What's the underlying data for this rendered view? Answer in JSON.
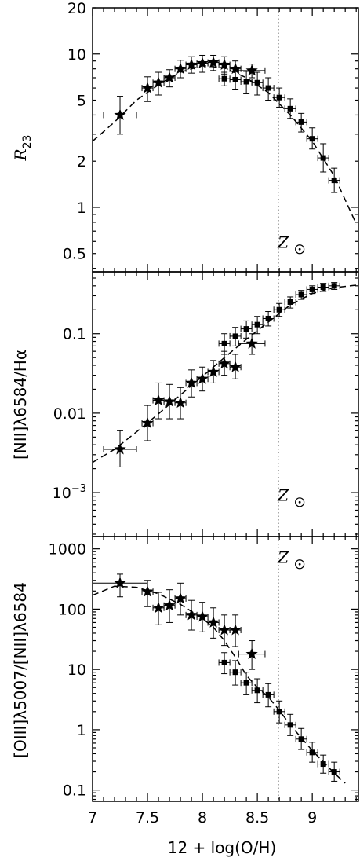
{
  "chart_data": [
    {
      "type": "scatter",
      "ylabel": "R23",
      "ylabel_main": "R",
      "ylabel_sub": "23",
      "yscale": "log",
      "ylim": [
        0.38,
        20
      ],
      "xlim": [
        7.0,
        9.42
      ],
      "yticks": [
        {
          "v": 0.5,
          "label": "0.5"
        },
        {
          "v": 1,
          "label": "1"
        },
        {
          "v": 2,
          "label": "2"
        },
        {
          "v": 5,
          "label": "5"
        },
        {
          "v": 10,
          "label": "10"
        },
        {
          "v": 20,
          "label": "20"
        }
      ],
      "annotation": "Z",
      "annotation_pos": [
        8.8,
        0.6
      ],
      "vline": 8.69,
      "series": [
        {
          "marker": "star",
          "x": [
            7.25,
            7.5,
            7.6,
            7.7,
            7.8,
            7.9,
            8.0,
            8.1,
            8.2,
            8.3,
            8.45
          ],
          "y": [
            4.0,
            6.0,
            6.5,
            7.0,
            8.0,
            8.5,
            8.7,
            8.8,
            8.5,
            8.0,
            7.8
          ],
          "xerr": [
            0.15,
            0.05,
            0.05,
            0.05,
            0.05,
            0.05,
            0.05,
            0.05,
            0.05,
            0.05,
            0.12
          ],
          "ylo": [
            3.0,
            4.9,
            5.4,
            6.1,
            7.0,
            7.5,
            7.6,
            7.8,
            7.4,
            7.0,
            7.0
          ],
          "yhi": [
            5.3,
            7.1,
            7.6,
            7.9,
            9.1,
            9.6,
            9.8,
            9.8,
            9.6,
            9.0,
            8.6
          ]
        },
        {
          "marker": "square",
          "x": [
            8.2,
            8.3,
            8.4,
            8.5,
            8.6,
            8.7,
            8.8,
            8.9,
            9.0,
            9.1,
            9.2
          ],
          "y": [
            6.9,
            6.8,
            6.6,
            6.5,
            6.0,
            5.2,
            4.4,
            3.6,
            2.8,
            2.1,
            1.5
          ],
          "xerr": [
            0.05,
            0.05,
            0.05,
            0.05,
            0.05,
            0.05,
            0.05,
            0.05,
            0.05,
            0.05,
            0.05
          ],
          "ylo": [
            6.2,
            5.9,
            5.5,
            5.4,
            5.0,
            4.5,
            3.8,
            3.1,
            2.4,
            1.7,
            1.25
          ],
          "yhi": [
            7.6,
            7.7,
            7.7,
            7.6,
            7.0,
            6.0,
            5.1,
            4.1,
            3.3,
            2.6,
            1.8
          ]
        }
      ],
      "curve": {
        "x": [
          7.0,
          7.2,
          7.4,
          7.6,
          7.8,
          8.0,
          8.2,
          8.4,
          8.6,
          8.8,
          9.0,
          9.2,
          9.4
        ],
        "y": [
          2.7,
          3.6,
          5.0,
          6.3,
          7.6,
          8.4,
          8.1,
          7.0,
          5.6,
          4.0,
          2.7,
          1.6,
          0.78
        ]
      }
    },
    {
      "type": "scatter",
      "ylabel": "[NII]λ6584/Hα",
      "yscale": "log",
      "ylim": [
        0.00028,
        0.6
      ],
      "xlim": [
        7.0,
        9.42
      ],
      "yticks": [
        {
          "v": 0.001,
          "label": "10",
          "sup": "−3"
        },
        {
          "v": 0.01,
          "label": "0.01"
        },
        {
          "v": 0.1,
          "label": "0.1"
        }
      ],
      "annotation": "Z",
      "annotation_pos": [
        8.8,
        0.00095
      ],
      "vline": 8.69,
      "series": [
        {
          "marker": "star",
          "x": [
            7.25,
            7.5,
            7.6,
            7.7,
            7.8,
            7.9,
            8.0,
            8.1,
            8.2,
            8.3,
            8.45
          ],
          "y": [
            0.0035,
            0.0075,
            0.0145,
            0.014,
            0.0135,
            0.024,
            0.027,
            0.033,
            0.042,
            0.038,
            0.075
          ],
          "xerr": [
            0.15,
            0.05,
            0.05,
            0.05,
            0.05,
            0.05,
            0.05,
            0.05,
            0.05,
            0.05,
            0.12
          ],
          "ylo": [
            0.0021,
            0.0045,
            0.0085,
            0.0085,
            0.0085,
            0.016,
            0.019,
            0.024,
            0.03,
            0.027,
            0.055
          ],
          "yhi": [
            0.006,
            0.0125,
            0.024,
            0.023,
            0.021,
            0.035,
            0.038,
            0.046,
            0.06,
            0.055,
            0.1
          ]
        },
        {
          "marker": "square",
          "x": [
            8.2,
            8.3,
            8.4,
            8.5,
            8.6,
            8.7,
            8.8,
            8.9,
            9.0,
            9.1,
            9.2
          ],
          "y": [
            0.075,
            0.093,
            0.115,
            0.13,
            0.155,
            0.2,
            0.25,
            0.31,
            0.36,
            0.385,
            0.4
          ],
          "xerr": [
            0.05,
            0.05,
            0.05,
            0.05,
            0.05,
            0.05,
            0.05,
            0.05,
            0.05,
            0.05,
            0.05
          ],
          "ylo": [
            0.055,
            0.07,
            0.088,
            0.1,
            0.125,
            0.165,
            0.21,
            0.27,
            0.32,
            0.34,
            0.36
          ],
          "yhi": [
            0.1,
            0.12,
            0.145,
            0.165,
            0.19,
            0.24,
            0.29,
            0.35,
            0.4,
            0.43,
            0.44
          ]
        }
      ],
      "curve": {
        "x": [
          7.0,
          7.2,
          7.4,
          7.6,
          7.8,
          8.0,
          8.2,
          8.4,
          8.6,
          8.8,
          9.0,
          9.2,
          9.42
        ],
        "y": [
          0.0024,
          0.0035,
          0.0058,
          0.0098,
          0.017,
          0.029,
          0.05,
          0.085,
          0.14,
          0.23,
          0.32,
          0.38,
          0.41
        ]
      }
    },
    {
      "type": "scatter",
      "ylabel": "[OIII]λ5007/[NII]λ6584",
      "yscale": "log",
      "ylim": [
        0.065,
        1600
      ],
      "xlim": [
        7.0,
        9.42
      ],
      "xlabel": "12 + log(O/H)",
      "yticks": [
        {
          "v": 0.1,
          "label": "0.1"
        },
        {
          "v": 1,
          "label": "1"
        },
        {
          "v": 10,
          "label": "10"
        },
        {
          "v": 100,
          "label": "100"
        },
        {
          "v": 1000,
          "label": "1000"
        }
      ],
      "xticks": [
        {
          "v": 7,
          "label": "7"
        },
        {
          "v": 7.5,
          "label": "7.5"
        },
        {
          "v": 8,
          "label": "8"
        },
        {
          "v": 8.5,
          "label": "8.5"
        },
        {
          "v": 9,
          "label": "9"
        }
      ],
      "annotation": "Z",
      "annotation_pos": [
        8.8,
        750
      ],
      "vline": 8.69,
      "series": [
        {
          "marker": "star",
          "x": [
            7.25,
            7.5,
            7.6,
            7.7,
            7.8,
            7.9,
            8.0,
            8.1,
            8.2,
            8.3,
            8.45
          ],
          "y": [
            270,
            195,
            105,
            115,
            150,
            80,
            75,
            60,
            45,
            45,
            18
          ],
          "xerr": [
            0.25,
            0.05,
            0.05,
            0.05,
            0.05,
            0.05,
            0.05,
            0.05,
            0.05,
            0.05,
            0.12
          ],
          "ylo": [
            160,
            110,
            55,
            60,
            80,
            45,
            42,
            33,
            25,
            24,
            10
          ],
          "yhi": [
            380,
            300,
            190,
            210,
            270,
            140,
            130,
            105,
            80,
            80,
            30
          ]
        },
        {
          "marker": "square",
          "x": [
            8.2,
            8.3,
            8.4,
            8.5,
            8.6,
            8.7,
            8.8,
            8.9,
            9.0,
            9.1,
            9.2
          ],
          "y": [
            13,
            9,
            6,
            4.5,
            3.8,
            2.0,
            1.2,
            0.7,
            0.42,
            0.27,
            0.2
          ],
          "xerr": [
            0.05,
            0.05,
            0.05,
            0.05,
            0.05,
            0.05,
            0.05,
            0.05,
            0.05,
            0.05,
            0.05
          ],
          "ylo": [
            8.5,
            5.5,
            3.8,
            2.8,
            2.4,
            1.3,
            0.8,
            0.47,
            0.29,
            0.19,
            0.14
          ],
          "yhi": [
            19,
            14,
            9,
            7,
            5.8,
            3.0,
            1.8,
            1.05,
            0.62,
            0.38,
            0.29
          ]
        }
      ],
      "curve": {
        "x": [
          7.0,
          7.2,
          7.4,
          7.6,
          7.8,
          8.0,
          8.1,
          8.2,
          8.3,
          8.4,
          8.5,
          8.6,
          8.7,
          8.8,
          9.0,
          9.2,
          9.3
        ],
        "y": [
          170,
          240,
          230,
          180,
          120,
          70,
          50,
          30,
          16,
          8,
          5.0,
          3.5,
          2.1,
          1.2,
          0.45,
          0.19,
          0.13
        ]
      }
    }
  ]
}
